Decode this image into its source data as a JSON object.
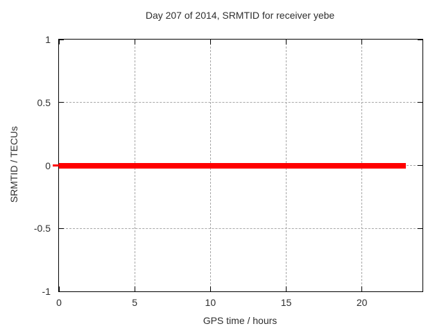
{
  "chart_data": {
    "type": "line",
    "title": "Day 207 of 2014, SRMTID for receiver yebe",
    "xlabel": "GPS time / hours",
    "ylabel": "SRMTID / TECUs",
    "xlim": [
      0,
      24
    ],
    "ylim": [
      -1,
      1
    ],
    "xticks": [
      {
        "value": 0,
        "label": "0"
      },
      {
        "value": 5,
        "label": "5"
      },
      {
        "value": 10,
        "label": "10"
      },
      {
        "value": 15,
        "label": "15"
      },
      {
        "value": 20,
        "label": "20"
      }
    ],
    "yticks": [
      {
        "value": -1,
        "label": "-1"
      },
      {
        "value": -0.5,
        "label": "-0.5"
      },
      {
        "value": 0,
        "label": "0"
      },
      {
        "value": 0.5,
        "label": "0.5"
      },
      {
        "value": 1,
        "label": "1"
      }
    ],
    "grid": {
      "visible": true,
      "style": "dashed",
      "color": "#a6a6a6"
    },
    "legend": "none",
    "series": [
      {
        "name": "SRMTID",
        "color": "#ff0000",
        "points": [
          [
            0,
            0
          ],
          [
            22.9,
            0
          ]
        ],
        "description": "constant zero line from 0 to 22.9 hours"
      }
    ],
    "colors": {
      "background": "#ffffff",
      "border": "#000000",
      "text": "#2e2e2e"
    }
  }
}
